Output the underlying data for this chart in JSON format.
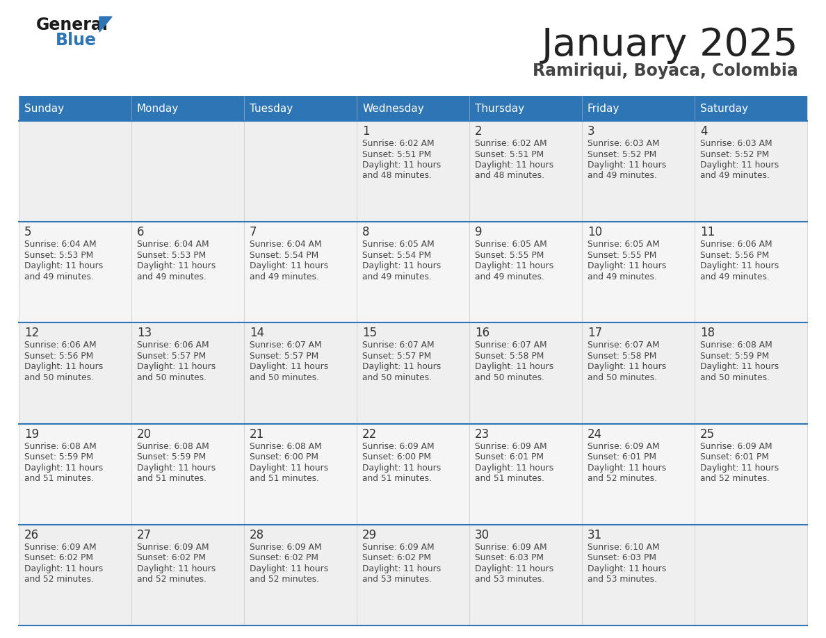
{
  "title": "January 2025",
  "subtitle": "Ramiriqui, Boyaca, Colombia",
  "days_of_week": [
    "Sunday",
    "Monday",
    "Tuesday",
    "Wednesday",
    "Thursday",
    "Friday",
    "Saturday"
  ],
  "header_bg": "#2E75B6",
  "header_text": "#FFFFFF",
  "cell_bg_row0": "#EFEFEF",
  "cell_bg_row1": "#F5F5F5",
  "cell_bg_row2": "#EFEFEF",
  "cell_bg_row3": "#F5F5F5",
  "cell_bg_row4": "#EFEFEF",
  "divider_color": "#2E75B6",
  "day_num_color": "#333333",
  "text_color": "#444444",
  "title_color": "#222222",
  "subtitle_color": "#444444",
  "calendar_data": [
    {
      "day": 1,
      "row": 0,
      "col": 3,
      "sunrise": "6:02 AM",
      "sunset": "5:51 PM",
      "daylight_hours": 11,
      "daylight_minutes": 48
    },
    {
      "day": 2,
      "row": 0,
      "col": 4,
      "sunrise": "6:02 AM",
      "sunset": "5:51 PM",
      "daylight_hours": 11,
      "daylight_minutes": 48
    },
    {
      "day": 3,
      "row": 0,
      "col": 5,
      "sunrise": "6:03 AM",
      "sunset": "5:52 PM",
      "daylight_hours": 11,
      "daylight_minutes": 49
    },
    {
      "day": 4,
      "row": 0,
      "col": 6,
      "sunrise": "6:03 AM",
      "sunset": "5:52 PM",
      "daylight_hours": 11,
      "daylight_minutes": 49
    },
    {
      "day": 5,
      "row": 1,
      "col": 0,
      "sunrise": "6:04 AM",
      "sunset": "5:53 PM",
      "daylight_hours": 11,
      "daylight_minutes": 49
    },
    {
      "day": 6,
      "row": 1,
      "col": 1,
      "sunrise": "6:04 AM",
      "sunset": "5:53 PM",
      "daylight_hours": 11,
      "daylight_minutes": 49
    },
    {
      "day": 7,
      "row": 1,
      "col": 2,
      "sunrise": "6:04 AM",
      "sunset": "5:54 PM",
      "daylight_hours": 11,
      "daylight_minutes": 49
    },
    {
      "day": 8,
      "row": 1,
      "col": 3,
      "sunrise": "6:05 AM",
      "sunset": "5:54 PM",
      "daylight_hours": 11,
      "daylight_minutes": 49
    },
    {
      "day": 9,
      "row": 1,
      "col": 4,
      "sunrise": "6:05 AM",
      "sunset": "5:55 PM",
      "daylight_hours": 11,
      "daylight_minutes": 49
    },
    {
      "day": 10,
      "row": 1,
      "col": 5,
      "sunrise": "6:05 AM",
      "sunset": "5:55 PM",
      "daylight_hours": 11,
      "daylight_minutes": 49
    },
    {
      "day": 11,
      "row": 1,
      "col": 6,
      "sunrise": "6:06 AM",
      "sunset": "5:56 PM",
      "daylight_hours": 11,
      "daylight_minutes": 49
    },
    {
      "day": 12,
      "row": 2,
      "col": 0,
      "sunrise": "6:06 AM",
      "sunset": "5:56 PM",
      "daylight_hours": 11,
      "daylight_minutes": 50
    },
    {
      "day": 13,
      "row": 2,
      "col": 1,
      "sunrise": "6:06 AM",
      "sunset": "5:57 PM",
      "daylight_hours": 11,
      "daylight_minutes": 50
    },
    {
      "day": 14,
      "row": 2,
      "col": 2,
      "sunrise": "6:07 AM",
      "sunset": "5:57 PM",
      "daylight_hours": 11,
      "daylight_minutes": 50
    },
    {
      "day": 15,
      "row": 2,
      "col": 3,
      "sunrise": "6:07 AM",
      "sunset": "5:57 PM",
      "daylight_hours": 11,
      "daylight_minutes": 50
    },
    {
      "day": 16,
      "row": 2,
      "col": 4,
      "sunrise": "6:07 AM",
      "sunset": "5:58 PM",
      "daylight_hours": 11,
      "daylight_minutes": 50
    },
    {
      "day": 17,
      "row": 2,
      "col": 5,
      "sunrise": "6:07 AM",
      "sunset": "5:58 PM",
      "daylight_hours": 11,
      "daylight_minutes": 50
    },
    {
      "day": 18,
      "row": 2,
      "col": 6,
      "sunrise": "6:08 AM",
      "sunset": "5:59 PM",
      "daylight_hours": 11,
      "daylight_minutes": 50
    },
    {
      "day": 19,
      "row": 3,
      "col": 0,
      "sunrise": "6:08 AM",
      "sunset": "5:59 PM",
      "daylight_hours": 11,
      "daylight_minutes": 51
    },
    {
      "day": 20,
      "row": 3,
      "col": 1,
      "sunrise": "6:08 AM",
      "sunset": "5:59 PM",
      "daylight_hours": 11,
      "daylight_minutes": 51
    },
    {
      "day": 21,
      "row": 3,
      "col": 2,
      "sunrise": "6:08 AM",
      "sunset": "6:00 PM",
      "daylight_hours": 11,
      "daylight_minutes": 51
    },
    {
      "day": 22,
      "row": 3,
      "col": 3,
      "sunrise": "6:09 AM",
      "sunset": "6:00 PM",
      "daylight_hours": 11,
      "daylight_minutes": 51
    },
    {
      "day": 23,
      "row": 3,
      "col": 4,
      "sunrise": "6:09 AM",
      "sunset": "6:01 PM",
      "daylight_hours": 11,
      "daylight_minutes": 51
    },
    {
      "day": 24,
      "row": 3,
      "col": 5,
      "sunrise": "6:09 AM",
      "sunset": "6:01 PM",
      "daylight_hours": 11,
      "daylight_minutes": 52
    },
    {
      "day": 25,
      "row": 3,
      "col": 6,
      "sunrise": "6:09 AM",
      "sunset": "6:01 PM",
      "daylight_hours": 11,
      "daylight_minutes": 52
    },
    {
      "day": 26,
      "row": 4,
      "col": 0,
      "sunrise": "6:09 AM",
      "sunset": "6:02 PM",
      "daylight_hours": 11,
      "daylight_minutes": 52
    },
    {
      "day": 27,
      "row": 4,
      "col": 1,
      "sunrise": "6:09 AM",
      "sunset": "6:02 PM",
      "daylight_hours": 11,
      "daylight_minutes": 52
    },
    {
      "day": 28,
      "row": 4,
      "col": 2,
      "sunrise": "6:09 AM",
      "sunset": "6:02 PM",
      "daylight_hours": 11,
      "daylight_minutes": 52
    },
    {
      "day": 29,
      "row": 4,
      "col": 3,
      "sunrise": "6:09 AM",
      "sunset": "6:02 PM",
      "daylight_hours": 11,
      "daylight_minutes": 53
    },
    {
      "day": 30,
      "row": 4,
      "col": 4,
      "sunrise": "6:09 AM",
      "sunset": "6:03 PM",
      "daylight_hours": 11,
      "daylight_minutes": 53
    },
    {
      "day": 31,
      "row": 4,
      "col": 5,
      "sunrise": "6:10 AM",
      "sunset": "6:03 PM",
      "daylight_hours": 11,
      "daylight_minutes": 53
    }
  ]
}
